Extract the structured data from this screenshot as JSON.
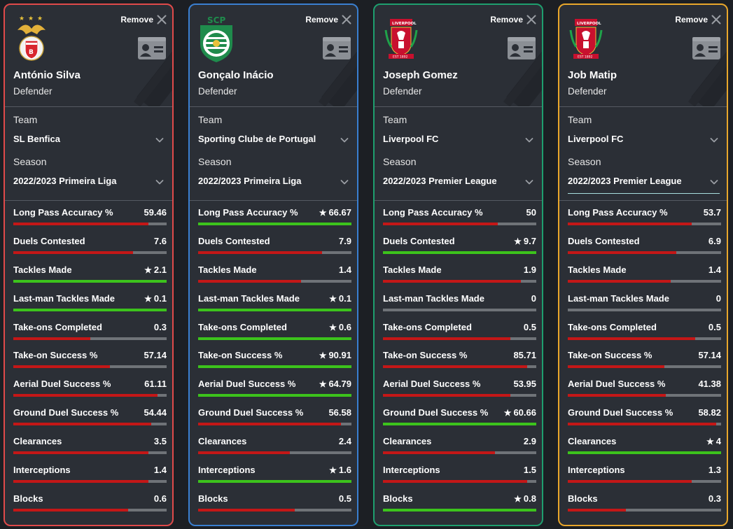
{
  "ui": {
    "remove_label": "Remove",
    "team_label": "Team",
    "season_label": "Season"
  },
  "colors": {
    "bar_red": "#c41717",
    "bar_green": "#3cc31c",
    "track": "#6f7378"
  },
  "players": [
    {
      "border_color": "#e04a4a",
      "crest": "benfica-crest-icon",
      "name": "António Silva",
      "position": "Defender",
      "team": "SL Benfica",
      "season": "2022/2023 Primeira Liga",
      "stats": [
        {
          "label": "Long Pass Accuracy %",
          "value": "59.46",
          "star": false,
          "fill": 0.88
        },
        {
          "label": "Duels Contested",
          "value": "7.6",
          "star": false,
          "fill": 0.78
        },
        {
          "label": "Tackles Made",
          "value": "2.1",
          "star": true,
          "fill": 1.0
        },
        {
          "label": "Last-man Tackles Made",
          "value": "0.1",
          "star": true,
          "fill": 1.0
        },
        {
          "label": "Take-ons Completed",
          "value": "0.3",
          "star": false,
          "fill": 0.5
        },
        {
          "label": "Take-on Success %",
          "value": "57.14",
          "star": false,
          "fill": 0.63
        },
        {
          "label": "Aerial Duel Success %",
          "value": "61.11",
          "star": false,
          "fill": 0.94
        },
        {
          "label": "Ground Duel Success %",
          "value": "54.44",
          "star": false,
          "fill": 0.9
        },
        {
          "label": "Clearances",
          "value": "3.5",
          "star": false,
          "fill": 0.88
        },
        {
          "label": "Interceptions",
          "value": "1.4",
          "star": false,
          "fill": 0.88
        },
        {
          "label": "Blocks",
          "value": "0.6",
          "star": false,
          "fill": 0.75
        }
      ]
    },
    {
      "border_color": "#3a7fd0",
      "crest": "sporting-crest-icon",
      "name": "Gonçalo Inácio",
      "position": "Defender",
      "team": "Sporting Clube de Portugal",
      "season": "2022/2023 Primeira Liga",
      "stats": [
        {
          "label": "Long Pass Accuracy %",
          "value": "66.67",
          "star": true,
          "fill": 1.0
        },
        {
          "label": "Duels Contested",
          "value": "7.9",
          "star": false,
          "fill": 0.81
        },
        {
          "label": "Tackles Made",
          "value": "1.4",
          "star": false,
          "fill": 0.67
        },
        {
          "label": "Last-man Tackles Made",
          "value": "0.1",
          "star": true,
          "fill": 1.0
        },
        {
          "label": "Take-ons Completed",
          "value": "0.6",
          "star": true,
          "fill": 1.0
        },
        {
          "label": "Take-on Success %",
          "value": "90.91",
          "star": true,
          "fill": 1.0
        },
        {
          "label": "Aerial Duel Success %",
          "value": "64.79",
          "star": true,
          "fill": 1.0
        },
        {
          "label": "Ground Duel Success %",
          "value": "56.58",
          "star": false,
          "fill": 0.93
        },
        {
          "label": "Clearances",
          "value": "2.4",
          "star": false,
          "fill": 0.6
        },
        {
          "label": "Interceptions",
          "value": "1.6",
          "star": true,
          "fill": 1.0
        },
        {
          "label": "Blocks",
          "value": "0.5",
          "star": false,
          "fill": 0.63
        }
      ]
    },
    {
      "border_color": "#1e9f6e",
      "crest": "liverpool-crest-icon",
      "name": "Joseph Gomez",
      "position": "Defender",
      "team": "Liverpool FC",
      "season": "2022/2023 Premier League",
      "stats": [
        {
          "label": "Long Pass Accuracy %",
          "value": "50",
          "star": false,
          "fill": 0.75
        },
        {
          "label": "Duels Contested",
          "value": "9.7",
          "star": true,
          "fill": 1.0
        },
        {
          "label": "Tackles Made",
          "value": "1.9",
          "star": false,
          "fill": 0.9
        },
        {
          "label": "Last-man Tackles Made",
          "value": "0",
          "star": false,
          "fill": 0.0
        },
        {
          "label": "Take-ons Completed",
          "value": "0.5",
          "star": false,
          "fill": 0.83
        },
        {
          "label": "Take-on Success %",
          "value": "85.71",
          "star": false,
          "fill": 0.94
        },
        {
          "label": "Aerial Duel Success %",
          "value": "53.95",
          "star": false,
          "fill": 0.83
        },
        {
          "label": "Ground Duel Success %",
          "value": "60.66",
          "star": true,
          "fill": 1.0
        },
        {
          "label": "Clearances",
          "value": "2.9",
          "star": false,
          "fill": 0.73
        },
        {
          "label": "Interceptions",
          "value": "1.5",
          "star": false,
          "fill": 0.94
        },
        {
          "label": "Blocks",
          "value": "0.8",
          "star": true,
          "fill": 1.0
        }
      ]
    },
    {
      "border_color": "#e9a72b",
      "crest": "liverpool-crest-icon",
      "name": "Job Matip",
      "position": "Defender",
      "team": "Liverpool FC",
      "season": "2022/2023 Premier League",
      "stats": [
        {
          "label": "Long Pass Accuracy %",
          "value": "53.7",
          "star": false,
          "fill": 0.81
        },
        {
          "label": "Duels Contested",
          "value": "6.9",
          "star": false,
          "fill": 0.71
        },
        {
          "label": "Tackles Made",
          "value": "1.4",
          "star": false,
          "fill": 0.67
        },
        {
          "label": "Last-man Tackles Made",
          "value": "0",
          "star": false,
          "fill": 0.0
        },
        {
          "label": "Take-ons Completed",
          "value": "0.5",
          "star": false,
          "fill": 0.83
        },
        {
          "label": "Take-on Success %",
          "value": "57.14",
          "star": false,
          "fill": 0.63
        },
        {
          "label": "Aerial Duel Success %",
          "value": "41.38",
          "star": false,
          "fill": 0.64
        },
        {
          "label": "Ground Duel Success %",
          "value": "58.82",
          "star": false,
          "fill": 0.97
        },
        {
          "label": "Clearances",
          "value": "4",
          "star": true,
          "fill": 1.0
        },
        {
          "label": "Interceptions",
          "value": "1.3",
          "star": false,
          "fill": 0.81
        },
        {
          "label": "Blocks",
          "value": "0.3",
          "star": false,
          "fill": 0.38
        }
      ]
    }
  ]
}
